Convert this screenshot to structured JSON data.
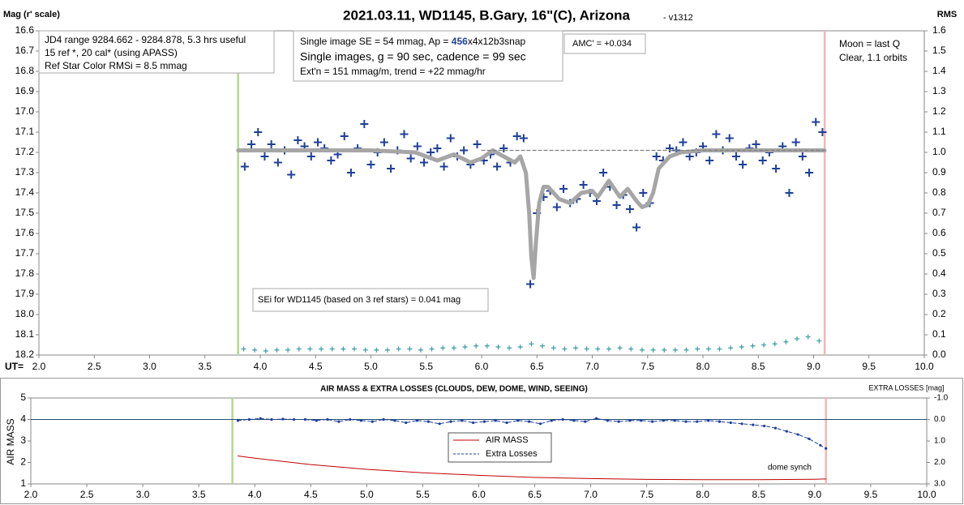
{
  "chart_data": [
    {
      "type": "scatter",
      "title": "2021.03.11, WD1145, B.Gary, 16\"(C), Arizona",
      "subtitle": "- v1312",
      "ylabel": "Mag (r' scale)",
      "y2label": "RMS",
      "xlabel": "UT=",
      "xlim": [
        2,
        10
      ],
      "xticks": [
        {
          "value": 2,
          "label": "2.0"
        },
        2.5,
        {
          "value": 3,
          "label": "3.0"
        },
        3.5,
        {
          "value": 4,
          "label": "4.0"
        },
        4.5,
        {
          "value": 5,
          "label": "5.0"
        },
        5.5,
        {
          "value": 6,
          "label": "6.0"
        },
        6.5,
        {
          "value": 7,
          "label": "7.0"
        },
        7.5,
        {
          "value": 8,
          "label": "8.0"
        },
        8.5,
        {
          "value": 9,
          "label": "9.0"
        },
        9.5,
        {
          "value": 10,
          "label": "10.0"
        }
      ],
      "ylim": [
        18.2,
        16.6
      ],
      "yticks": [
        16.6,
        16.7,
        16.8,
        16.9,
        {
          "value": 17,
          "label": "17.0"
        },
        17.1,
        17.2,
        17.3,
        17.4,
        17.5,
        17.6,
        17.7,
        17.8,
        17.9,
        {
          "value": 18,
          "label": "18.0"
        },
        18.1,
        18.2
      ],
      "y2lim": [
        0,
        1.6
      ],
      "y2ticks": [
        {
          "value": 0,
          "label": "0.0"
        },
        0.1,
        0.2,
        0.3,
        0.4,
        0.5,
        0.6,
        0.7,
        0.8,
        0.9,
        {
          "value": 1,
          "label": "1.0"
        },
        1.1,
        1.2,
        1.3,
        1.4,
        1.5,
        1.6
      ],
      "grid": false,
      "vlines": [
        {
          "x": 3.8,
          "color": "#b5d98c"
        },
        {
          "x": 9.1,
          "color": "#f4b6b6"
        }
      ],
      "series": [
        {
          "color": "#1f3f99",
          "marker": "plus",
          "x": [
            3.86,
            3.92,
            3.98,
            4.04,
            4.1,
            4.16,
            4.22,
            4.28,
            4.34,
            4.4,
            4.46,
            4.52,
            4.58,
            4.64,
            4.7,
            4.76,
            4.82,
            4.88,
            4.94,
            5.0,
            5.06,
            5.12,
            5.18,
            5.24,
            5.3,
            5.36,
            5.42,
            5.48,
            5.54,
            5.6,
            5.66,
            5.72,
            5.78,
            5.84,
            5.9,
            5.96,
            6.02,
            6.08,
            6.14,
            6.2,
            6.26,
            6.32,
            6.38,
            6.44,
            6.5,
            6.56,
            6.62,
            6.68,
            6.74,
            6.8,
            6.86,
            6.92,
            6.98,
            7.04,
            7.1,
            7.16,
            7.22,
            7.28,
            7.34,
            7.4,
            7.46,
            7.52,
            7.58,
            7.64,
            7.7,
            7.76,
            7.82,
            7.88,
            7.94,
            8.0,
            8.06,
            8.12,
            8.18,
            8.24,
            8.3,
            8.36,
            8.42,
            8.48,
            8.54,
            8.6,
            8.66,
            8.72,
            8.78,
            8.84,
            8.9,
            8.96,
            9.02,
            9.08
          ],
          "values": [
            17.27,
            17.16,
            17.1,
            17.22,
            17.16,
            17.25,
            17.19,
            17.31,
            17.14,
            17.17,
            17.22,
            17.15,
            17.18,
            17.24,
            17.21,
            17.12,
            17.3,
            17.18,
            17.06,
            17.26,
            17.2,
            17.15,
            17.28,
            17.19,
            17.11,
            17.23,
            17.17,
            17.25,
            17.2,
            17.18,
            17.27,
            17.13,
            17.22,
            17.19,
            17.26,
            17.16,
            17.24,
            17.21,
            17.27,
            17.18,
            17.25,
            17.12,
            17.13,
            17.85,
            17.5,
            17.42,
            17.39,
            17.47,
            17.38,
            17.45,
            17.43,
            17.36,
            17.4,
            17.44,
            17.3,
            17.37,
            17.46,
            17.41,
            17.48,
            17.57,
            17.4,
            17.45,
            17.22,
            17.24,
            17.18,
            17.19,
            17.15,
            17.22,
            17.2,
            17.17,
            17.24,
            17.11,
            17.19,
            17.13,
            17.22,
            17.26,
            17.18,
            17.16,
            17.24,
            17.2,
            17.28,
            17.17,
            17.4,
            17.15,
            17.22,
            17.3,
            17.05,
            17.1
          ]
        },
        {
          "color": "#a6a6a6",
          "line": "thick",
          "x": [
            3.8,
            4.5,
            5.0,
            5.4,
            5.6,
            5.75,
            5.9,
            6.0,
            6.1,
            6.2,
            6.3,
            6.35,
            6.4,
            6.43,
            6.45,
            6.47,
            6.49,
            6.52,
            6.56,
            6.6,
            6.7,
            6.8,
            6.9,
            7.0,
            7.05,
            7.15,
            7.25,
            7.32,
            7.4,
            7.45,
            7.5,
            7.55,
            7.6,
            7.7,
            7.8,
            8.0,
            9.1
          ],
          "values": [
            17.19,
            17.19,
            17.19,
            17.2,
            17.24,
            17.21,
            17.25,
            17.23,
            17.19,
            17.22,
            17.25,
            17.22,
            17.3,
            17.5,
            17.72,
            17.82,
            17.65,
            17.45,
            17.37,
            17.37,
            17.43,
            17.45,
            17.4,
            17.39,
            17.42,
            17.34,
            17.42,
            17.38,
            17.44,
            17.47,
            17.46,
            17.4,
            17.28,
            17.22,
            17.2,
            17.19,
            17.19
          ]
        },
        {
          "color": "#808080",
          "line": "dashed",
          "x": [
            6.0,
            9.1
          ],
          "values": [
            17.19,
            17.19
          ]
        },
        {
          "color": "#3a9ea5",
          "marker": "plus-small",
          "axis": "y2",
          "x": [
            3.85,
            3.95,
            4.05,
            4.15,
            4.25,
            4.35,
            4.45,
            4.55,
            4.65,
            4.75,
            4.85,
            4.95,
            5.05,
            5.15,
            5.25,
            5.35,
            5.45,
            5.55,
            5.65,
            5.75,
            5.85,
            5.95,
            6.05,
            6.15,
            6.25,
            6.35,
            6.45,
            6.55,
            6.65,
            6.75,
            6.85,
            6.95,
            7.05,
            7.15,
            7.25,
            7.35,
            7.45,
            7.55,
            7.65,
            7.75,
            7.85,
            7.95,
            8.05,
            8.15,
            8.25,
            8.35,
            8.45,
            8.55,
            8.65,
            8.75,
            8.85,
            8.95,
            9.05
          ],
          "values": [
            0.03,
            0.025,
            0.02,
            0.025,
            0.025,
            0.03,
            0.03,
            0.03,
            0.03,
            0.03,
            0.03,
            0.025,
            0.025,
            0.025,
            0.03,
            0.03,
            0.025,
            0.03,
            0.035,
            0.035,
            0.04,
            0.045,
            0.045,
            0.04,
            0.035,
            0.04,
            0.055,
            0.045,
            0.035,
            0.03,
            0.035,
            0.03,
            0.03,
            0.03,
            0.035,
            0.03,
            0.025,
            0.025,
            0.025,
            0.025,
            0.025,
            0.03,
            0.03,
            0.03,
            0.035,
            0.04,
            0.045,
            0.05,
            0.055,
            0.065,
            0.08,
            0.09,
            0.07
          ]
        }
      ],
      "annotations": [
        {
          "lines": [
            "JD4 range 9284.662 - 9284.878, 5.3 hrs useful",
            "15 ref *, 20 cal* (using APASS)",
            "Ref Star Color RMSi = 8.5 mmag"
          ]
        },
        {
          "lines": [
            [
              "Single image SE = 54 mmag, Ap = ",
              "456",
              "x4x12b3snap"
            ],
            "Single images, g = 90 sec, cadence = 99 sec",
            "Ext'n = 151 mmag/m, trend = +22 mmag/hr"
          ]
        },
        {
          "lines": [
            "AMC' = +0.034"
          ]
        },
        {
          "lines": [
            "Moon = last Q",
            "Clear, 1.1 orbits"
          ]
        },
        {
          "lines": [
            "SEi for WD1145 (based on 3 ref stars) = 0.041 mag"
          ]
        }
      ]
    },
    {
      "type": "line",
      "title": "AIR MASS & EXTRA LOSSES (CLOUDS, DEW, DOME, WIND, SEEING)",
      "ylabel": "AIR MASS",
      "y2label": "EXTRA LOSSES [mag]",
      "xlim": [
        2,
        10
      ],
      "xticks": [
        {
          "value": 2,
          "label": "2.0"
        },
        2.5,
        {
          "value": 3,
          "label": "3.0"
        },
        3.5,
        {
          "value": 4,
          "label": "4.0"
        },
        4.5,
        {
          "value": 5,
          "label": "5.0"
        },
        5.5,
        {
          "value": 6,
          "label": "6.0"
        },
        6.5,
        {
          "value": 7,
          "label": "7.0"
        },
        7.5,
        {
          "value": 8,
          "label": "8.0"
        },
        8.5,
        {
          "value": 9,
          "label": "9.0"
        },
        9.5,
        {
          "value": 10,
          "label": "10.0"
        }
      ],
      "ylim": [
        1,
        5
      ],
      "yticks": [
        1,
        2,
        3,
        4,
        5
      ],
      "y2lim": [
        3,
        -1
      ],
      "y2ticks": [
        {
          "value": 3,
          "label": "3.0"
        },
        {
          "value": 2,
          "label": "2.0"
        },
        {
          "value": 1,
          "label": "1.0"
        },
        {
          "value": 0,
          "label": "0.0"
        },
        {
          "value": -1,
          "label": "-1.0"
        }
      ],
      "grid": false,
      "legend": "center",
      "vlines": [
        {
          "x": 3.8,
          "color": "#b5d98c"
        },
        {
          "x": 9.1,
          "color": "#f4b6b6"
        }
      ],
      "hlines": [
        {
          "axis": "y2",
          "y": 0,
          "color": "#1f4e79"
        }
      ],
      "series": [
        {
          "name": "AIR MASS",
          "color": "#c00000",
          "line": "solid",
          "x": [
            3.85,
            4.0,
            4.5,
            5.0,
            5.5,
            6.0,
            6.5,
            7.0,
            7.5,
            8.0,
            8.5,
            9.0,
            9.1
          ],
          "values": [
            2.3,
            2.2,
            1.9,
            1.68,
            1.52,
            1.4,
            1.3,
            1.25,
            1.21,
            1.2,
            1.2,
            1.22,
            1.23
          ]
        },
        {
          "name": "Extra Losses",
          "color": "#1f3f99",
          "line": "dashed",
          "marker": "dot",
          "axis": "y2",
          "x": [
            3.85,
            3.95,
            4.05,
            4.15,
            4.25,
            4.35,
            4.45,
            4.55,
            4.65,
            4.75,
            4.85,
            4.95,
            5.05,
            5.15,
            5.25,
            5.35,
            5.45,
            5.55,
            5.65,
            5.75,
            5.85,
            5.95,
            6.05,
            6.15,
            6.25,
            6.35,
            6.45,
            6.55,
            6.65,
            6.75,
            6.85,
            6.95,
            7.05,
            7.15,
            7.25,
            7.35,
            7.45,
            7.55,
            7.65,
            7.75,
            7.85,
            7.95,
            8.05,
            8.15,
            8.25,
            8.35,
            8.45,
            8.55,
            8.65,
            8.75,
            8.85,
            8.95,
            9.05,
            9.1
          ],
          "values": [
            0.05,
            0.0,
            -0.05,
            0.0,
            -0.02,
            0.0,
            0.0,
            0.05,
            0.0,
            0.1,
            0.0,
            0.05,
            0.1,
            0.0,
            0.05,
            0.15,
            0.05,
            0.1,
            0.2,
            0.1,
            0.05,
            0.15,
            0.1,
            0.05,
            0.15,
            0.05,
            0.1,
            0.2,
            0.05,
            0.0,
            0.05,
            0.1,
            -0.05,
            0.05,
            0.1,
            0.05,
            0.05,
            0.1,
            0.05,
            0.05,
            0.1,
            0.1,
            0.05,
            0.1,
            0.15,
            0.2,
            0.25,
            0.3,
            0.4,
            0.55,
            0.7,
            0.9,
            1.2,
            1.35
          ]
        }
      ],
      "annotations": [
        {
          "lines": [
            "dome synch"
          ]
        }
      ]
    }
  ]
}
